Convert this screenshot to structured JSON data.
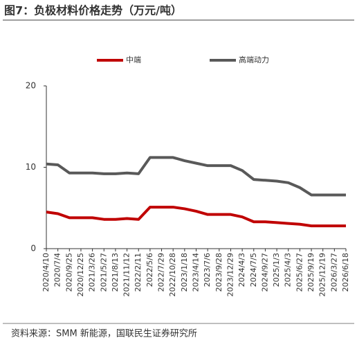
{
  "chart_data": {
    "type": "line",
    "title": "图7：负极材料价格走势（万元/吨）",
    "source": "资料来源：SMM 新能源，国联民生证券研究所",
    "categories": [
      "2020/4/10",
      "2020/7/4",
      "2020/9/25",
      "2020/12/25",
      "2021/3/26",
      "2021/5/27",
      "2021/8/13",
      "2021/11/12",
      "2022/2/11",
      "2022/5/6",
      "2022/7/29",
      "2022/10/28",
      "2023/1/18",
      "2023/4/14",
      "2023/7/6",
      "2023/9/28",
      "2023/12/29",
      "2024/4/3",
      "2024/7/5",
      "2024/9/27",
      "2025/1/3",
      "2025/4/3",
      "2025/6/27",
      "2025/9/19",
      "2025/12/19",
      "2026/3/27",
      "2026/6/18"
    ],
    "series": [
      {
        "name": "中端",
        "color": "#c00000",
        "values": [
          4.5,
          4.3,
          3.8,
          3.8,
          3.8,
          3.6,
          3.6,
          3.7,
          3.6,
          5.1,
          5.1,
          5.1,
          4.9,
          4.6,
          4.2,
          4.2,
          4.2,
          3.9,
          3.3,
          3.3,
          3.2,
          3.1,
          3.0,
          2.8,
          2.8,
          2.8,
          2.8
        ]
      },
      {
        "name": "高端动力",
        "color": "#595959",
        "values": [
          10.4,
          10.3,
          9.3,
          9.3,
          9.3,
          9.2,
          9.2,
          9.3,
          9.2,
          11.2,
          11.2,
          11.2,
          10.8,
          10.5,
          10.2,
          10.2,
          10.2,
          9.6,
          8.5,
          8.4,
          8.3,
          8.1,
          7.5,
          6.6,
          6.6,
          6.6,
          6.6
        ]
      }
    ],
    "ylim": [
      0,
      20
    ],
    "yticks": [
      0,
      10,
      20
    ],
    "grid": false,
    "legend": "top"
  }
}
